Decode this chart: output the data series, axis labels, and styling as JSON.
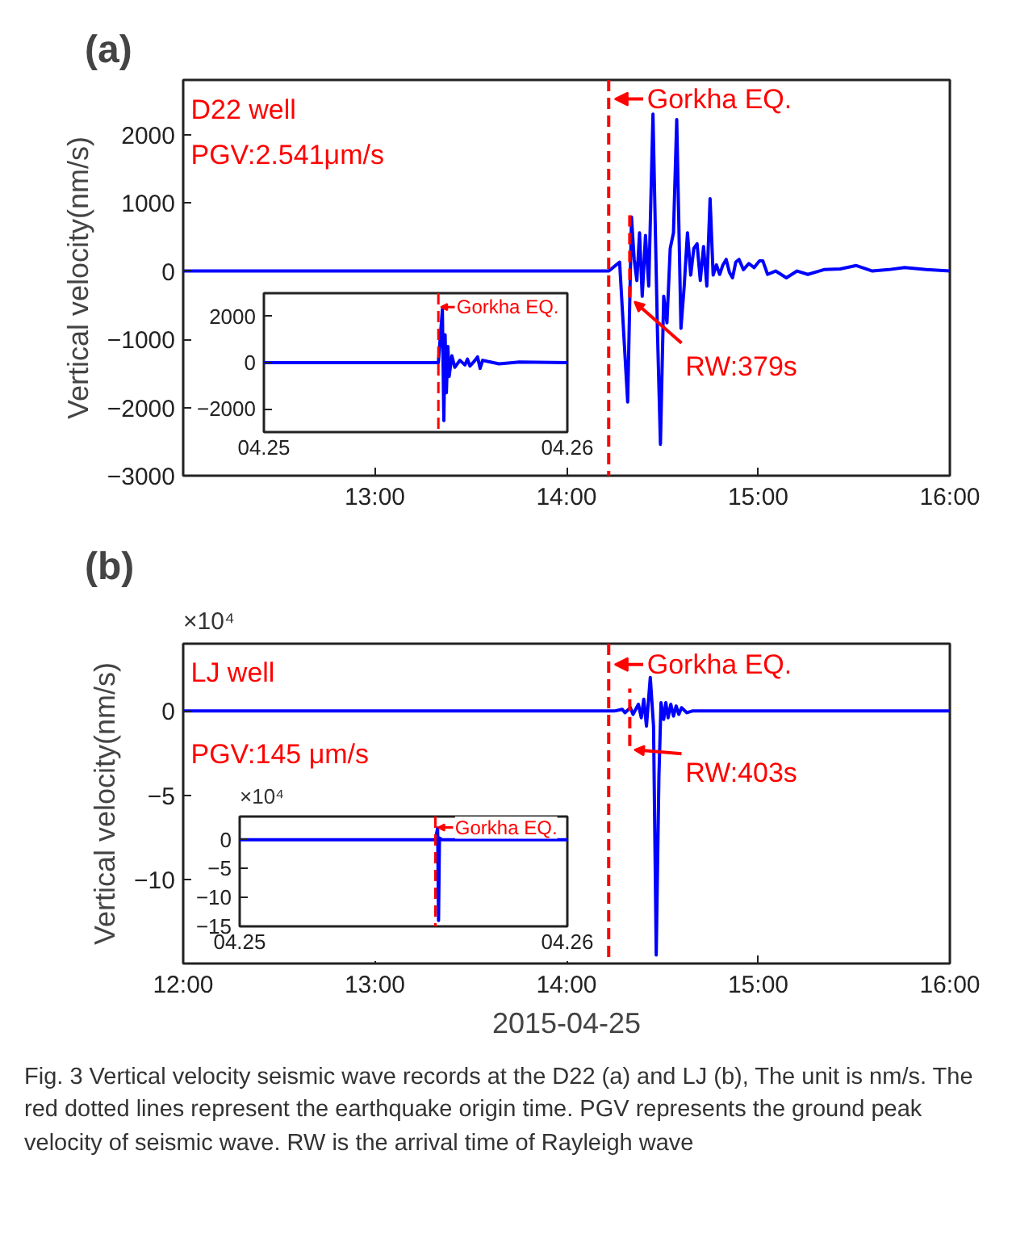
{
  "chart_data": [
    {
      "type": "line",
      "title": "(a)",
      "ylabel": "Vertical velocity(nm/s)",
      "xlim": [
        12,
        16
      ],
      "xticks": [
        {
          "value": 13,
          "label": "13:00"
        },
        {
          "value": 14,
          "label": "14:00"
        },
        {
          "value": 15,
          "label": "15:00"
        },
        {
          "value": 16,
          "label": "16:00"
        }
      ],
      "ylim": [
        -3000,
        2800
      ],
      "yticks": [
        -3000,
        -2000,
        -1000,
        0,
        1000,
        2000
      ],
      "series": [
        {
          "color": "#0000ff",
          "x": [
            12.0,
            14.221,
            14.277,
            14.319,
            14.339,
            14.353,
            14.367,
            14.381,
            14.395,
            14.412,
            14.429,
            14.451,
            14.474,
            14.49,
            14.507,
            14.524,
            14.541,
            14.558,
            14.575,
            14.597,
            14.614,
            14.631,
            14.648,
            14.664,
            14.681,
            14.698,
            14.715,
            14.732,
            14.749,
            14.765,
            14.782,
            14.799,
            14.816,
            14.833,
            14.85,
            14.866,
            14.883,
            14.9,
            14.923,
            14.951,
            14.979,
            15.007,
            15.024,
            15.049,
            15.091,
            15.147,
            15.203,
            15.259,
            15.343,
            15.428,
            15.512,
            15.596,
            15.68,
            15.764,
            15.877,
            16.0
          ],
          "values": [
            0,
            0,
            130,
            -1920,
            790,
            170,
            -140,
            560,
            -370,
            520,
            -220,
            2300,
            -840,
            -2540,
            -370,
            -760,
            330,
            560,
            2220,
            -840,
            -220,
            560,
            -60,
            330,
            400,
            -140,
            360,
            -220,
            1060,
            -60,
            90,
            -50,
            90,
            170,
            -20,
            -100,
            130,
            170,
            20,
            110,
            50,
            150,
            150,
            -50,
            0,
            -100,
            0,
            -50,
            20,
            30,
            80,
            0,
            20,
            50,
            20,
            0
          ]
        }
      ],
      "ref_lines": [
        {
          "axis": "x",
          "value": 14.22,
          "label": "Gorkha EQ.",
          "color": "#ff0000",
          "line_style": "dashed"
        },
        {
          "axis": "x",
          "value": 14.33,
          "color": "#ff0000",
          "line_style": "dashed"
        }
      ],
      "annotations": [
        "D22 well",
        "PGV:2.541μm/s",
        {
          "text": "RW:379s",
          "x": 14.33,
          "y": -450
        }
      ]
    },
    {
      "type": "line",
      "xlim": [
        "2015-04-25",
        "2015-04-26"
      ],
      "xticks": [
        {
          "value": "2015-04-25",
          "label": "04.25"
        },
        {
          "value": "2015-04-26",
          "label": "04.26"
        }
      ],
      "ylim": [
        -3000,
        3000
      ],
      "yticks": [
        -2000,
        0,
        2000
      ],
      "series": [
        {
          "color": "#0000ff",
          "x": [
            "2015-04-25",
            "2015-04-25T13:48",
            "2015-04-25T14:07",
            "2015-04-25T14:14",
            "2015-04-25T14:20",
            "2015-04-25T14:26",
            "2015-04-25T14:33",
            "2015-04-25T14:39",
            "2015-04-25T14:52",
            "2015-04-25T15:06",
            "2015-04-25T15:30",
            "2015-04-25T15:54",
            "2015-04-25T16:06",
            "2015-04-25T16:18",
            "2015-04-25T16:42",
            "2015-04-25T16:54",
            "2015-04-25T17:06",
            "2015-04-25T17:18",
            "2015-04-25T17:42",
            "2015-04-25T18:36",
            "2015-04-25T20:12",
            "2015-04-26"
          ],
          "values": [
            0,
            0,
            2300,
            -2500,
            1200,
            -1300,
            700,
            -600,
            300,
            -200,
            100,
            -100,
            150,
            -150,
            100,
            250,
            -250,
            100,
            50,
            -50,
            30,
            0
          ]
        }
      ],
      "ref_lines": [
        {
          "axis": "x",
          "value": "2015-04-25T13:48",
          "label": "Gorkha EQ.",
          "color": "#ff0000",
          "line_style": "dashed"
        }
      ]
    },
    {
      "type": "line",
      "title": "(b)",
      "ylabel": "Vertical velocity(nm/s)",
      "xlabel": "2015-04-25",
      "xlim": [
        12,
        16
      ],
      "xticks": [
        {
          "value": 12,
          "label": "12:00"
        },
        {
          "value": 13,
          "label": "13:00"
        },
        {
          "value": 14,
          "label": "14:00"
        },
        {
          "value": 15,
          "label": "15:00"
        },
        {
          "value": 16,
          "label": "16:00"
        }
      ],
      "ylim": [
        -15,
        4
      ],
      "yticks": [
        -10,
        -5,
        0
      ],
      "series": [
        {
          "color": "#0000ff",
          "x": [
            12.0,
            14.249,
            14.291,
            14.305,
            14.333,
            14.347,
            14.375,
            14.39,
            14.403,
            14.417,
            14.437,
            14.454,
            14.468,
            14.482,
            14.493,
            14.507,
            14.518,
            14.53,
            14.544,
            14.558,
            14.572,
            14.586,
            14.6,
            14.628,
            14.656,
            14.726,
            16.0
          ],
          "values": [
            0,
            0,
            0.1,
            -0.1,
            0.2,
            -0.2,
            0.4,
            -0.4,
            0.7,
            -0.9,
            2.0,
            -0.9,
            -14.5,
            -3.9,
            0.5,
            -0.5,
            0.5,
            -0.4,
            0.4,
            -0.3,
            0.3,
            -0.2,
            0.2,
            -0.1,
            0,
            0,
            0
          ]
        }
      ],
      "ref_lines": [
        {
          "axis": "x",
          "value": 14.22,
          "label": "Gorkha EQ.",
          "color": "#ff0000",
          "line_style": "dashed"
        },
        {
          "axis": "x",
          "value": 14.33,
          "color": "#ff0000",
          "line_style": "dashed"
        }
      ],
      "annotations": [
        "LJ well",
        "PGV:145 μm/s",
        "×10⁴",
        {
          "text": "RW:403s",
          "x": 14.33,
          "y": -2.3
        }
      ]
    },
    {
      "type": "line",
      "xlim": [
        "2015-04-25",
        "2015-04-26"
      ],
      "xticks": [
        {
          "value": "2015-04-25",
          "label": "04.25"
        },
        {
          "value": "2015-04-26",
          "label": "04.26"
        }
      ],
      "ylim": [
        -15,
        4
      ],
      "yticks": [
        -15,
        -10,
        -5,
        0
      ],
      "series": [
        {
          "color": "#0000ff",
          "x": [
            "2015-04-25",
            "2015-04-25T14:20",
            "2015-04-25T14:30",
            "2015-04-25T14:34",
            "2015-04-25T14:38",
            "2015-04-25T14:48",
            "2015-04-26"
          ],
          "values": [
            0,
            0,
            2,
            -14,
            0.3,
            0,
            0
          ]
        }
      ],
      "ref_lines": [
        {
          "axis": "x",
          "value": "2015-04-25T14:20",
          "label": "Gorkha EQ.",
          "color": "#ff0000",
          "line_style": "dashed"
        }
      ],
      "annotations": [
        "×10⁴"
      ]
    },
    {
      "type": "other",
      "annotations": [
        "Fig. 3  Vertical velocity seismic wave records at the D22 (a) and LJ (b), The unit is nm/s. The red dotted lines represent the earthquake origin time. PGV represents the ground peak velocity of seismic wave. RW is the arrival time of Rayleigh wave"
      ]
    }
  ]
}
